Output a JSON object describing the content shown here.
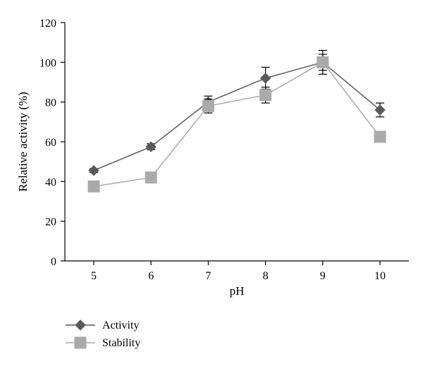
{
  "chart_data": {
    "type": "line",
    "xlabel": "pH",
    "ylabel": "Relative activity (%)",
    "categories": [
      "5",
      "6",
      "7",
      "8",
      "9",
      "10"
    ],
    "ylim": [
      0,
      120
    ],
    "yticks": [
      0,
      20,
      40,
      60,
      80,
      100,
      120
    ],
    "grid": false,
    "legend_position": "bottom-left",
    "series": [
      {
        "name": "Activity",
        "marker": "diamond",
        "color": "#5a5a5a",
        "values": [
          45.5,
          57.5,
          80,
          92,
          100,
          76
        ],
        "error": [
          1,
          1.5,
          3,
          5.5,
          6,
          3.5
        ]
      },
      {
        "name": "Stability",
        "marker": "square",
        "color": "#aaaaaa",
        "values": [
          37.5,
          42,
          78,
          83.5,
          100,
          62.5
        ],
        "error": [
          1,
          1.5,
          3.5,
          4,
          4,
          2.5
        ]
      }
    ]
  }
}
